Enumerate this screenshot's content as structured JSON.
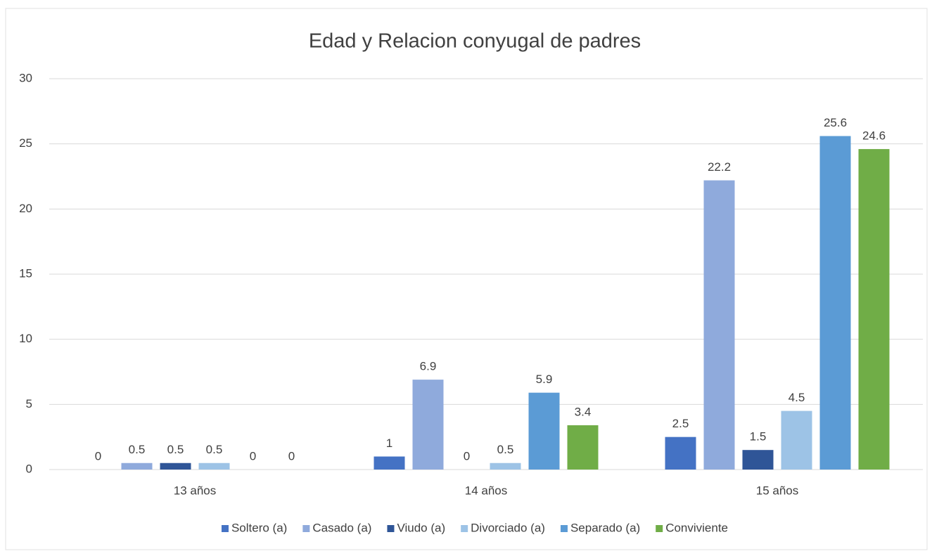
{
  "chart_data": {
    "type": "bar",
    "title": "Edad y Relacion conyugal de padres",
    "categories": [
      "13 años",
      "14 años",
      "15 años"
    ],
    "series": [
      {
        "name": "Soltero (a)",
        "color": "#4472c4",
        "values": [
          0,
          1,
          2.5
        ]
      },
      {
        "name": "Casado (a)",
        "color": "#8faadc",
        "values": [
          0.5,
          6.9,
          22.2
        ]
      },
      {
        "name": "Viudo (a)",
        "color": "#2f5597",
        "values": [
          0.5,
          0,
          1.5
        ]
      },
      {
        "name": "Divorciado (a)",
        "color": "#9dc3e6",
        "values": [
          0.5,
          0.5,
          4.5
        ]
      },
      {
        "name": "Separado (a)",
        "color": "#5b9bd5",
        "values": [
          0,
          5.9,
          25.6
        ]
      },
      {
        "name": "Conviviente",
        "color": "#70ad47",
        "values": [
          0,
          3.4,
          24.6
        ]
      }
    ],
    "ylim": [
      0,
      30
    ],
    "yticks": [
      0,
      5,
      10,
      15,
      20,
      25,
      30
    ],
    "grid": true,
    "legend": "bottom",
    "data_labels": true
  }
}
